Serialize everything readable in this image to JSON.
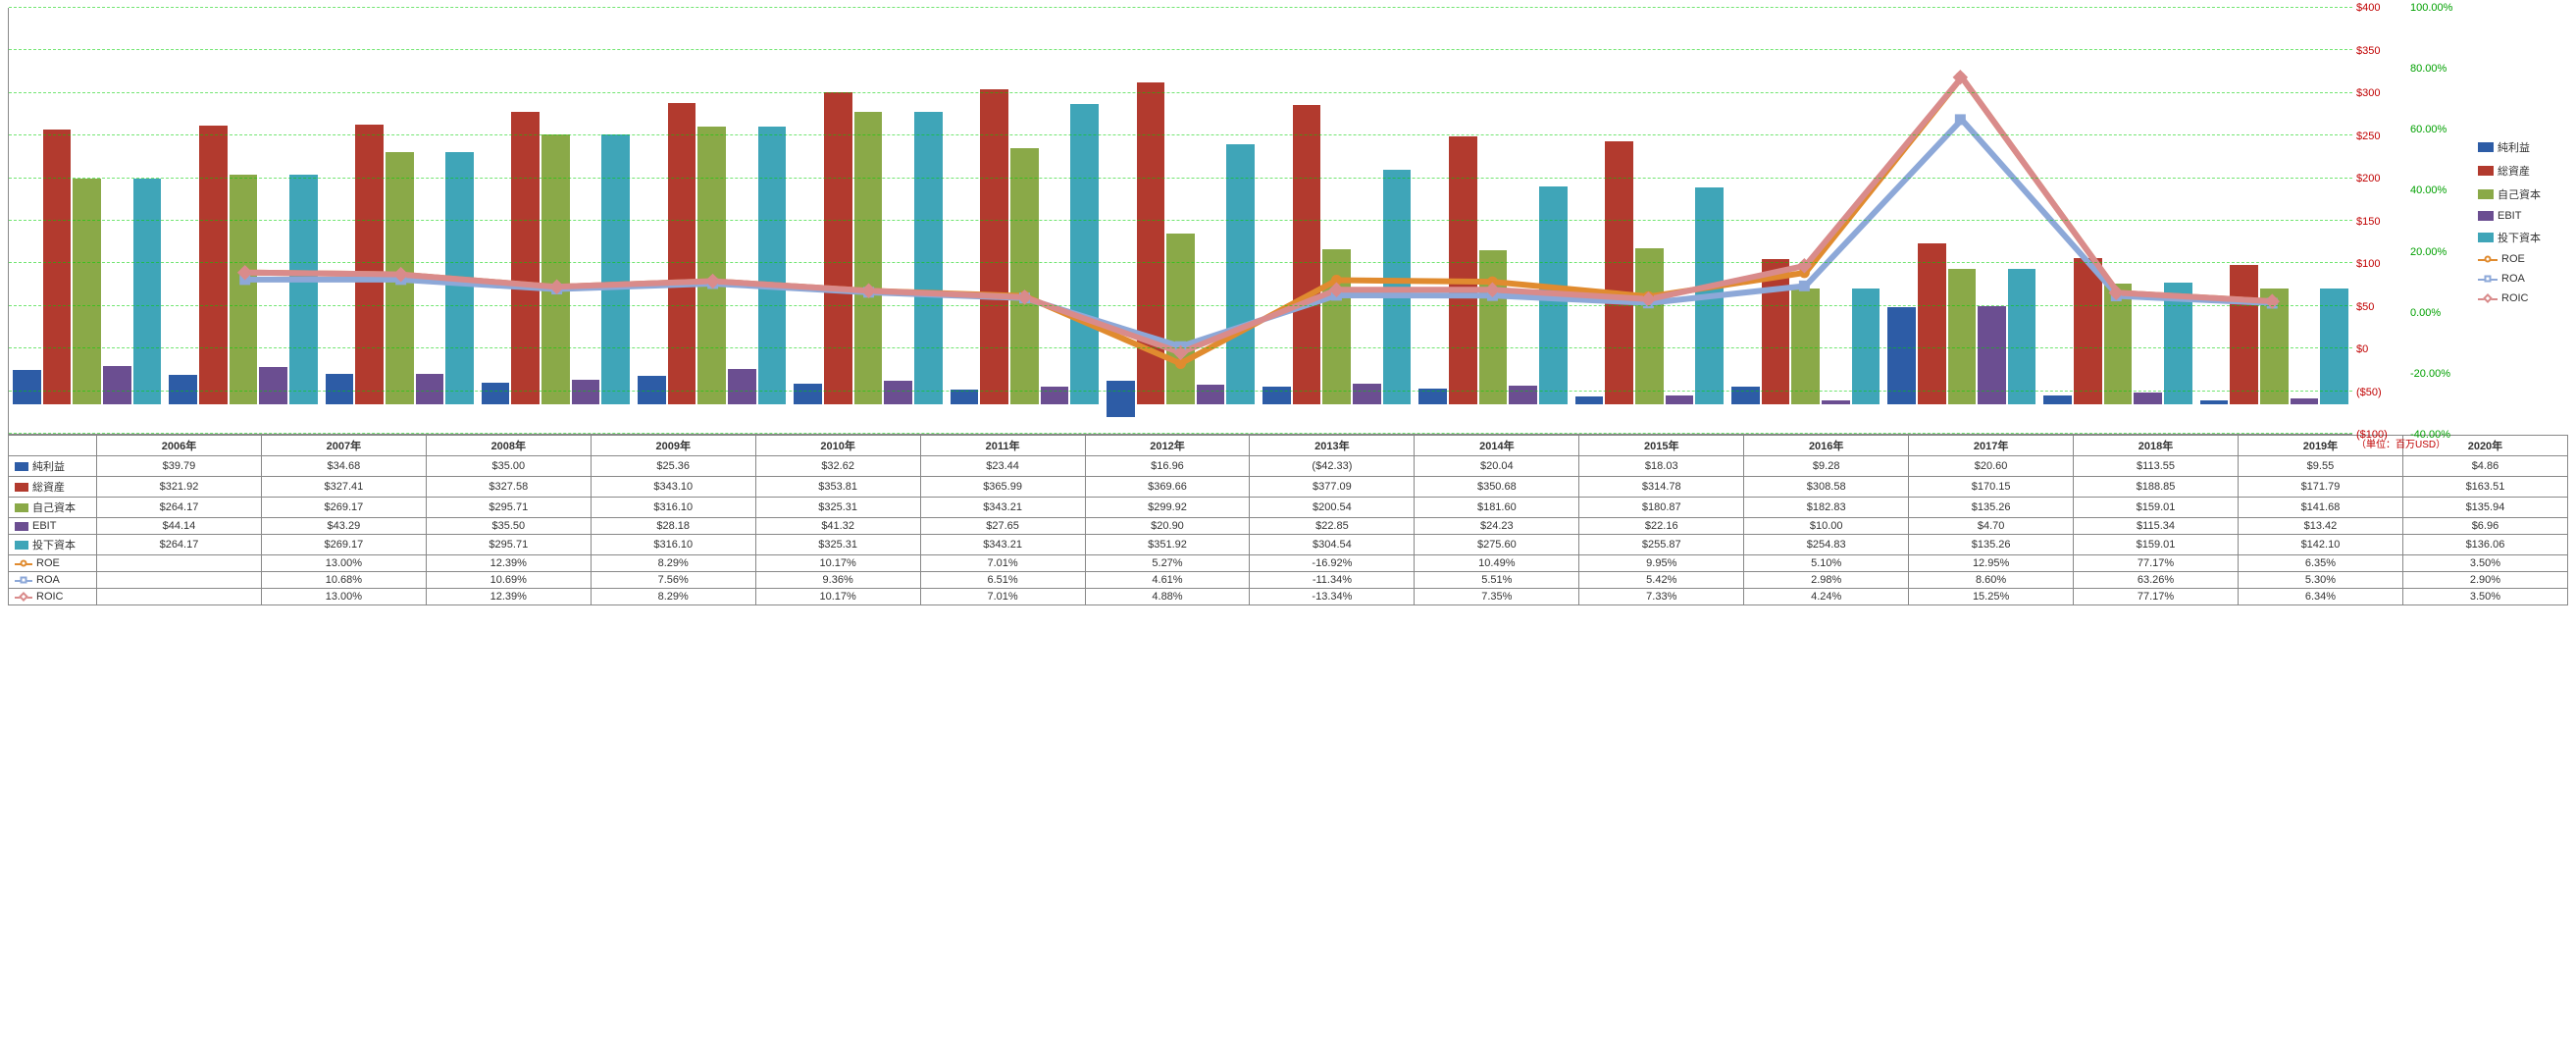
{
  "chart": {
    "years": [
      "2006年",
      "2007年",
      "2008年",
      "2009年",
      "2010年",
      "2011年",
      "2012年",
      "2013年",
      "2014年",
      "2015年",
      "2016年",
      "2017年",
      "2018年",
      "2019年",
      "2020年"
    ],
    "primary_axis": {
      "min": -100,
      "max": 400,
      "step": 50,
      "format": "dollar",
      "color": "#c00000"
    },
    "secondary_axis": {
      "min": -40,
      "max": 100,
      "step": 20,
      "format": "percent",
      "color": "#00a000"
    },
    "grid_color": "#00d000",
    "background_color": "#ffffff",
    "unit_label": "（単位：百万USD）",
    "bar_series": [
      {
        "key": "net_income",
        "label": "純利益",
        "color": "#2d5ca6",
        "values": [
          39.79,
          34.68,
          35.0,
          25.36,
          32.62,
          23.44,
          16.96,
          -42.33,
          20.04,
          18.03,
          9.28,
          20.6,
          113.55,
          9.55,
          4.86
        ]
      },
      {
        "key": "total_assets",
        "label": "総資産",
        "color": "#b23a2e",
        "values": [
          321.92,
          327.41,
          327.58,
          343.1,
          353.81,
          365.99,
          369.66,
          377.09,
          350.68,
          314.78,
          308.58,
          170.15,
          188.85,
          171.79,
          163.51
        ]
      },
      {
        "key": "equity",
        "label": "自己資本",
        "color": "#8aa948",
        "values": [
          264.17,
          269.17,
          295.71,
          316.1,
          325.31,
          343.21,
          299.92,
          200.54,
          181.6,
          180.87,
          182.83,
          135.26,
          159.01,
          141.68,
          135.94
        ]
      },
      {
        "key": "ebit",
        "label": "EBIT",
        "color": "#6b4e91",
        "values": [
          44.14,
          43.29,
          35.5,
          28.18,
          41.32,
          27.65,
          20.9,
          22.85,
          24.23,
          22.16,
          10.0,
          4.7,
          115.34,
          13.42,
          6.96
        ]
      },
      {
        "key": "invested_capital",
        "label": "投下資本",
        "color": "#3fa5b8",
        "values": [
          264.17,
          269.17,
          295.71,
          316.1,
          325.31,
          343.21,
          351.92,
          304.54,
          275.6,
          255.87,
          254.83,
          135.26,
          159.01,
          142.1,
          136.06
        ]
      }
    ],
    "line_series": [
      {
        "key": "roe",
        "label": "ROE",
        "color": "#e08b2f",
        "marker": "circle",
        "values": [
          null,
          13.0,
          12.39,
          8.29,
          10.17,
          7.01,
          5.27,
          -16.92,
          10.49,
          9.95,
          5.1,
          12.95,
          77.17,
          6.35,
          3.5
        ]
      },
      {
        "key": "roa",
        "label": "ROA",
        "color": "#8da8d8",
        "marker": "square",
        "values": [
          null,
          10.68,
          10.69,
          7.56,
          9.36,
          6.51,
          4.61,
          -11.34,
          5.51,
          5.42,
          2.98,
          8.6,
          63.26,
          5.3,
          2.9
        ]
      },
      {
        "key": "roic",
        "label": "ROIC",
        "color": "#d98b8b",
        "marker": "diamond",
        "values": [
          null,
          13.0,
          12.39,
          8.29,
          10.17,
          7.01,
          4.88,
          -13.34,
          7.35,
          7.33,
          4.24,
          15.25,
          77.17,
          6.34,
          3.5
        ]
      }
    ],
    "line_width": 2.5,
    "marker_size": 9
  },
  "table": {
    "rows": [
      {
        "key": "net_income",
        "label": "純利益",
        "swatch": "bar",
        "color": "#2d5ca6",
        "cells": [
          "$39.79",
          "$34.68",
          "$35.00",
          "$25.36",
          "$32.62",
          "$23.44",
          "$16.96",
          "($42.33)",
          "$20.04",
          "$18.03",
          "$9.28",
          "$20.60",
          "$113.55",
          "$9.55",
          "$4.86"
        ]
      },
      {
        "key": "total_assets",
        "label": "総資産",
        "swatch": "bar",
        "color": "#b23a2e",
        "cells": [
          "$321.92",
          "$327.41",
          "$327.58",
          "$343.10",
          "$353.81",
          "$365.99",
          "$369.66",
          "$377.09",
          "$350.68",
          "$314.78",
          "$308.58",
          "$170.15",
          "$188.85",
          "$171.79",
          "$163.51"
        ]
      },
      {
        "key": "equity",
        "label": "自己資本",
        "swatch": "bar",
        "color": "#8aa948",
        "cells": [
          "$264.17",
          "$269.17",
          "$295.71",
          "$316.10",
          "$325.31",
          "$343.21",
          "$299.92",
          "$200.54",
          "$181.60",
          "$180.87",
          "$182.83",
          "$135.26",
          "$159.01",
          "$141.68",
          "$135.94"
        ]
      },
      {
        "key": "ebit",
        "label": "EBIT",
        "swatch": "bar",
        "color": "#6b4e91",
        "cells": [
          "$44.14",
          "$43.29",
          "$35.50",
          "$28.18",
          "$41.32",
          "$27.65",
          "$20.90",
          "$22.85",
          "$24.23",
          "$22.16",
          "$10.00",
          "$4.70",
          "$115.34",
          "$13.42",
          "$6.96"
        ]
      },
      {
        "key": "invested_capital",
        "label": "投下資本",
        "swatch": "bar",
        "color": "#3fa5b8",
        "cells": [
          "$264.17",
          "$269.17",
          "$295.71",
          "$316.10",
          "$325.31",
          "$343.21",
          "$351.92",
          "$304.54",
          "$275.60",
          "$255.87",
          "$254.83",
          "$135.26",
          "$159.01",
          "$142.10",
          "$136.06"
        ]
      },
      {
        "key": "roe",
        "label": "ROE",
        "swatch": "line",
        "marker": "circle",
        "color": "#e08b2f",
        "cells": [
          "",
          "13.00%",
          "12.39%",
          "8.29%",
          "10.17%",
          "7.01%",
          "5.27%",
          "-16.92%",
          "10.49%",
          "9.95%",
          "5.10%",
          "12.95%",
          "77.17%",
          "6.35%",
          "3.50%"
        ]
      },
      {
        "key": "roa",
        "label": "ROA",
        "swatch": "line",
        "marker": "square",
        "color": "#8da8d8",
        "cells": [
          "",
          "10.68%",
          "10.69%",
          "7.56%",
          "9.36%",
          "6.51%",
          "4.61%",
          "-11.34%",
          "5.51%",
          "5.42%",
          "2.98%",
          "8.60%",
          "63.26%",
          "5.30%",
          "2.90%"
        ]
      },
      {
        "key": "roic",
        "label": "ROIC",
        "swatch": "line",
        "marker": "diamond",
        "color": "#d98b8b",
        "cells": [
          "",
          "13.00%",
          "12.39%",
          "8.29%",
          "10.17%",
          "7.01%",
          "4.88%",
          "-13.34%",
          "7.35%",
          "7.33%",
          "4.24%",
          "15.25%",
          "77.17%",
          "6.34%",
          "3.50%"
        ]
      }
    ]
  }
}
